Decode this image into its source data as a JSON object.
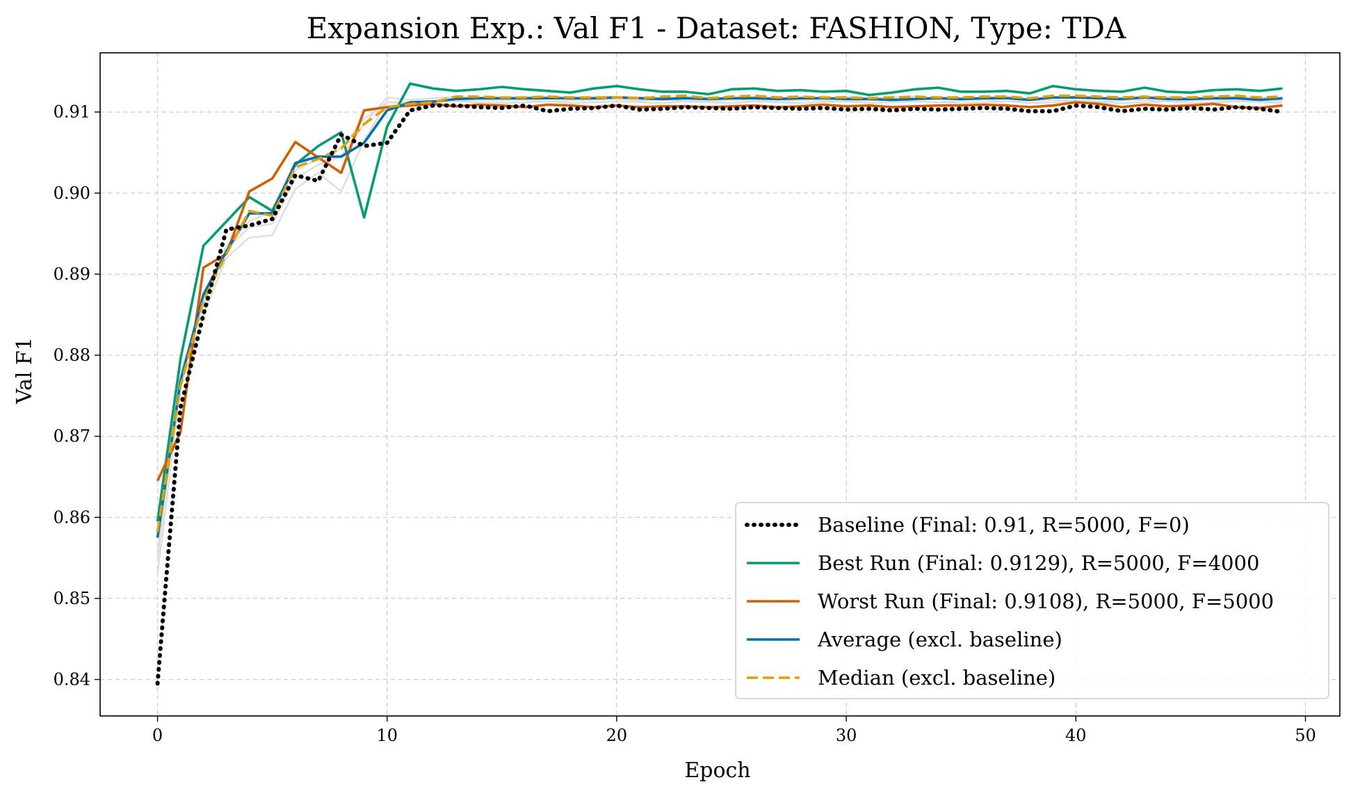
{
  "chart_data": {
    "type": "line",
    "title": "Expansion Exp.: Val F1 - Dataset: FASHION, Type: TDA",
    "xlabel": "Epoch",
    "ylabel": "Val F1",
    "xlim": [
      -2.5,
      51.5
    ],
    "ylim": [
      0.8355,
      0.9173
    ],
    "xticks": [
      0,
      10,
      20,
      30,
      40,
      50
    ],
    "yticks": [
      0.84,
      0.85,
      0.86,
      0.87,
      0.88,
      0.89,
      0.9,
      0.91
    ],
    "ytick_labels": [
      "0.84",
      "0.85",
      "0.86",
      "0.87",
      "0.88",
      "0.89",
      "0.90",
      "0.91"
    ],
    "grid": true,
    "legend_position": "lower-right",
    "x": [
      0,
      1,
      2,
      3,
      4,
      5,
      6,
      7,
      8,
      9,
      10,
      11,
      12,
      13,
      14,
      15,
      16,
      17,
      18,
      19,
      20,
      21,
      22,
      23,
      24,
      25,
      26,
      27,
      28,
      29,
      30,
      31,
      32,
      33,
      34,
      35,
      36,
      37,
      38,
      39,
      40,
      41,
      42,
      43,
      44,
      45,
      46,
      47,
      48,
      49
    ],
    "background_series": [
      {
        "color": "#dddddd",
        "values": [
          0.853,
          0.876,
          0.885,
          0.892,
          0.8945,
          0.8948,
          0.9005,
          0.9025,
          0.9002,
          0.9065,
          0.9112,
          0.9112,
          0.9113,
          0.9114,
          0.9115,
          0.9114,
          0.9115,
          0.9113,
          0.9114,
          0.9115,
          0.9116,
          0.9114,
          0.9115,
          0.9114,
          0.9113,
          0.9115,
          0.9114,
          0.9113,
          0.9115,
          0.9114,
          0.9113,
          0.9115,
          0.9114,
          0.9113,
          0.9112,
          0.9114,
          0.9115,
          0.9113,
          0.9114,
          0.9115,
          0.9114,
          0.9113,
          0.9114,
          0.9115,
          0.9113,
          0.9114,
          0.9115,
          0.9114,
          0.9113,
          0.9114
        ]
      },
      {
        "color": "#dddddd",
        "values": [
          0.855,
          0.878,
          0.886,
          0.893,
          0.8958,
          0.8962,
          0.9018,
          0.9035,
          0.9045,
          0.9085,
          0.9118,
          0.9115,
          0.9117,
          0.9119,
          0.9118,
          0.9117,
          0.9118,
          0.9119,
          0.9117,
          0.9118,
          0.9119,
          0.9118,
          0.9117,
          0.9119,
          0.9118,
          0.9117,
          0.9119,
          0.9118,
          0.9117,
          0.9118,
          0.9119,
          0.9117,
          0.9118,
          0.9119,
          0.9118,
          0.9117,
          0.9118,
          0.9119,
          0.9117,
          0.9118,
          0.9119,
          0.9118,
          0.9117,
          0.9118,
          0.9119,
          0.9117,
          0.9118,
          0.9119,
          0.9118,
          0.9117
        ]
      },
      {
        "color": "#dddddd",
        "values": [
          0.8555,
          0.8775,
          0.8865,
          0.8935,
          0.8965,
          0.8978,
          0.9028,
          0.9042,
          0.9055,
          0.9092,
          0.9112,
          0.9111,
          0.9112,
          0.9113,
          0.9112,
          0.9111,
          0.9112,
          0.9113,
          0.9111,
          0.9112,
          0.9113,
          0.9112,
          0.9111,
          0.9113,
          0.9112,
          0.9111,
          0.9113,
          0.9112,
          0.9111,
          0.9112,
          0.9113,
          0.9111,
          0.9112,
          0.9113,
          0.9112,
          0.9111,
          0.9112,
          0.9113,
          0.9111,
          0.9112,
          0.9113,
          0.9112,
          0.9111,
          0.9112,
          0.9113,
          0.9111,
          0.9112,
          0.9113,
          0.9112,
          0.9111
        ]
      }
    ],
    "series": [
      {
        "name": "Baseline (Final: 0.91, R=5000, F=0)",
        "color": "#000000",
        "style": "dotted",
        "values": [
          0.8395,
          0.8735,
          0.885,
          0.8955,
          0.896,
          0.8968,
          0.9022,
          0.9015,
          0.9072,
          0.9058,
          0.9062,
          0.9102,
          0.9108,
          0.9108,
          0.9106,
          0.9105,
          0.9108,
          0.9101,
          0.9104,
          0.9105,
          0.9108,
          0.9103,
          0.9104,
          0.9106,
          0.9105,
          0.9104,
          0.9106,
          0.9105,
          0.9104,
          0.9105,
          0.9103,
          0.9104,
          0.9102,
          0.9104,
          0.9103,
          0.9104,
          0.9105,
          0.9104,
          0.9101,
          0.9101,
          0.9108,
          0.9106,
          0.9101,
          0.9104,
          0.9103,
          0.9105,
          0.9103,
          0.9106,
          0.9104,
          0.91
        ]
      },
      {
        "name": "Best Run (Final: 0.9129), R=5000, F=4000",
        "color": "#009E73",
        "style": "solid",
        "values": [
          0.8595,
          0.8795,
          0.8935,
          0.8965,
          0.8995,
          0.8978,
          0.9035,
          0.9058,
          0.9075,
          0.897,
          0.9082,
          0.9135,
          0.9129,
          0.9126,
          0.9128,
          0.9131,
          0.9128,
          0.9126,
          0.9124,
          0.9129,
          0.9132,
          0.9128,
          0.9125,
          0.9125,
          0.9122,
          0.9128,
          0.9129,
          0.9126,
          0.9127,
          0.9125,
          0.9126,
          0.9121,
          0.9124,
          0.9128,
          0.913,
          0.9125,
          0.9125,
          0.9126,
          0.9123,
          0.9132,
          0.9128,
          0.9126,
          0.9125,
          0.913,
          0.9125,
          0.9124,
          0.9127,
          0.9128,
          0.9126,
          0.9129
        ]
      },
      {
        "name": "Worst Run (Final: 0.9108), R=5000, F=5000",
        "color": "#D55E00",
        "style": "solid",
        "values": [
          0.8645,
          0.8705,
          0.8908,
          0.8925,
          0.9002,
          0.9018,
          0.9063,
          0.9044,
          0.9025,
          0.9102,
          0.9106,
          0.9108,
          0.911,
          0.9107,
          0.9109,
          0.9108,
          0.9106,
          0.9109,
          0.9108,
          0.9106,
          0.9108,
          0.9106,
          0.9107,
          0.9107,
          0.9106,
          0.9107,
          0.9108,
          0.9106,
          0.9107,
          0.9109,
          0.9107,
          0.9108,
          0.9106,
          0.9107,
          0.9108,
          0.9108,
          0.9109,
          0.9108,
          0.9106,
          0.9108,
          0.9112,
          0.911,
          0.9106,
          0.9109,
          0.9107,
          0.9108,
          0.911,
          0.9106,
          0.9105,
          0.9108
        ]
      },
      {
        "name": "Average (excl. baseline)",
        "color": "#0072B2",
        "style": "solid",
        "values": [
          0.8575,
          0.8768,
          0.8875,
          0.8928,
          0.8975,
          0.8975,
          0.9037,
          0.9045,
          0.9045,
          0.9062,
          0.9102,
          0.9112,
          0.9113,
          0.9116,
          0.9117,
          0.9117,
          0.9117,
          0.9117,
          0.9117,
          0.9117,
          0.9118,
          0.9117,
          0.9116,
          0.9117,
          0.9116,
          0.9117,
          0.9117,
          0.9116,
          0.9117,
          0.9117,
          0.9116,
          0.9116,
          0.9115,
          0.9116,
          0.9117,
          0.9116,
          0.9117,
          0.9117,
          0.9115,
          0.9118,
          0.9118,
          0.9117,
          0.9116,
          0.9118,
          0.9116,
          0.9116,
          0.9117,
          0.9117,
          0.9115,
          0.9117
        ]
      },
      {
        "name": "Median (excl. baseline)",
        "color": "#E69F00",
        "style": "dashed",
        "values": [
          0.8582,
          0.8762,
          0.8868,
          0.8925,
          0.8978,
          0.8972,
          0.9032,
          0.9042,
          0.9055,
          0.9085,
          0.9106,
          0.911,
          0.9112,
          0.9119,
          0.9119,
          0.9118,
          0.9118,
          0.9119,
          0.9118,
          0.9118,
          0.9118,
          0.9117,
          0.9119,
          0.912,
          0.9117,
          0.9119,
          0.912,
          0.9118,
          0.9119,
          0.9118,
          0.9118,
          0.9117,
          0.9118,
          0.9119,
          0.9118,
          0.9118,
          0.9119,
          0.9119,
          0.9117,
          0.912,
          0.912,
          0.9119,
          0.9118,
          0.9119,
          0.9118,
          0.9118,
          0.9119,
          0.912,
          0.9118,
          0.9119
        ]
      }
    ]
  }
}
